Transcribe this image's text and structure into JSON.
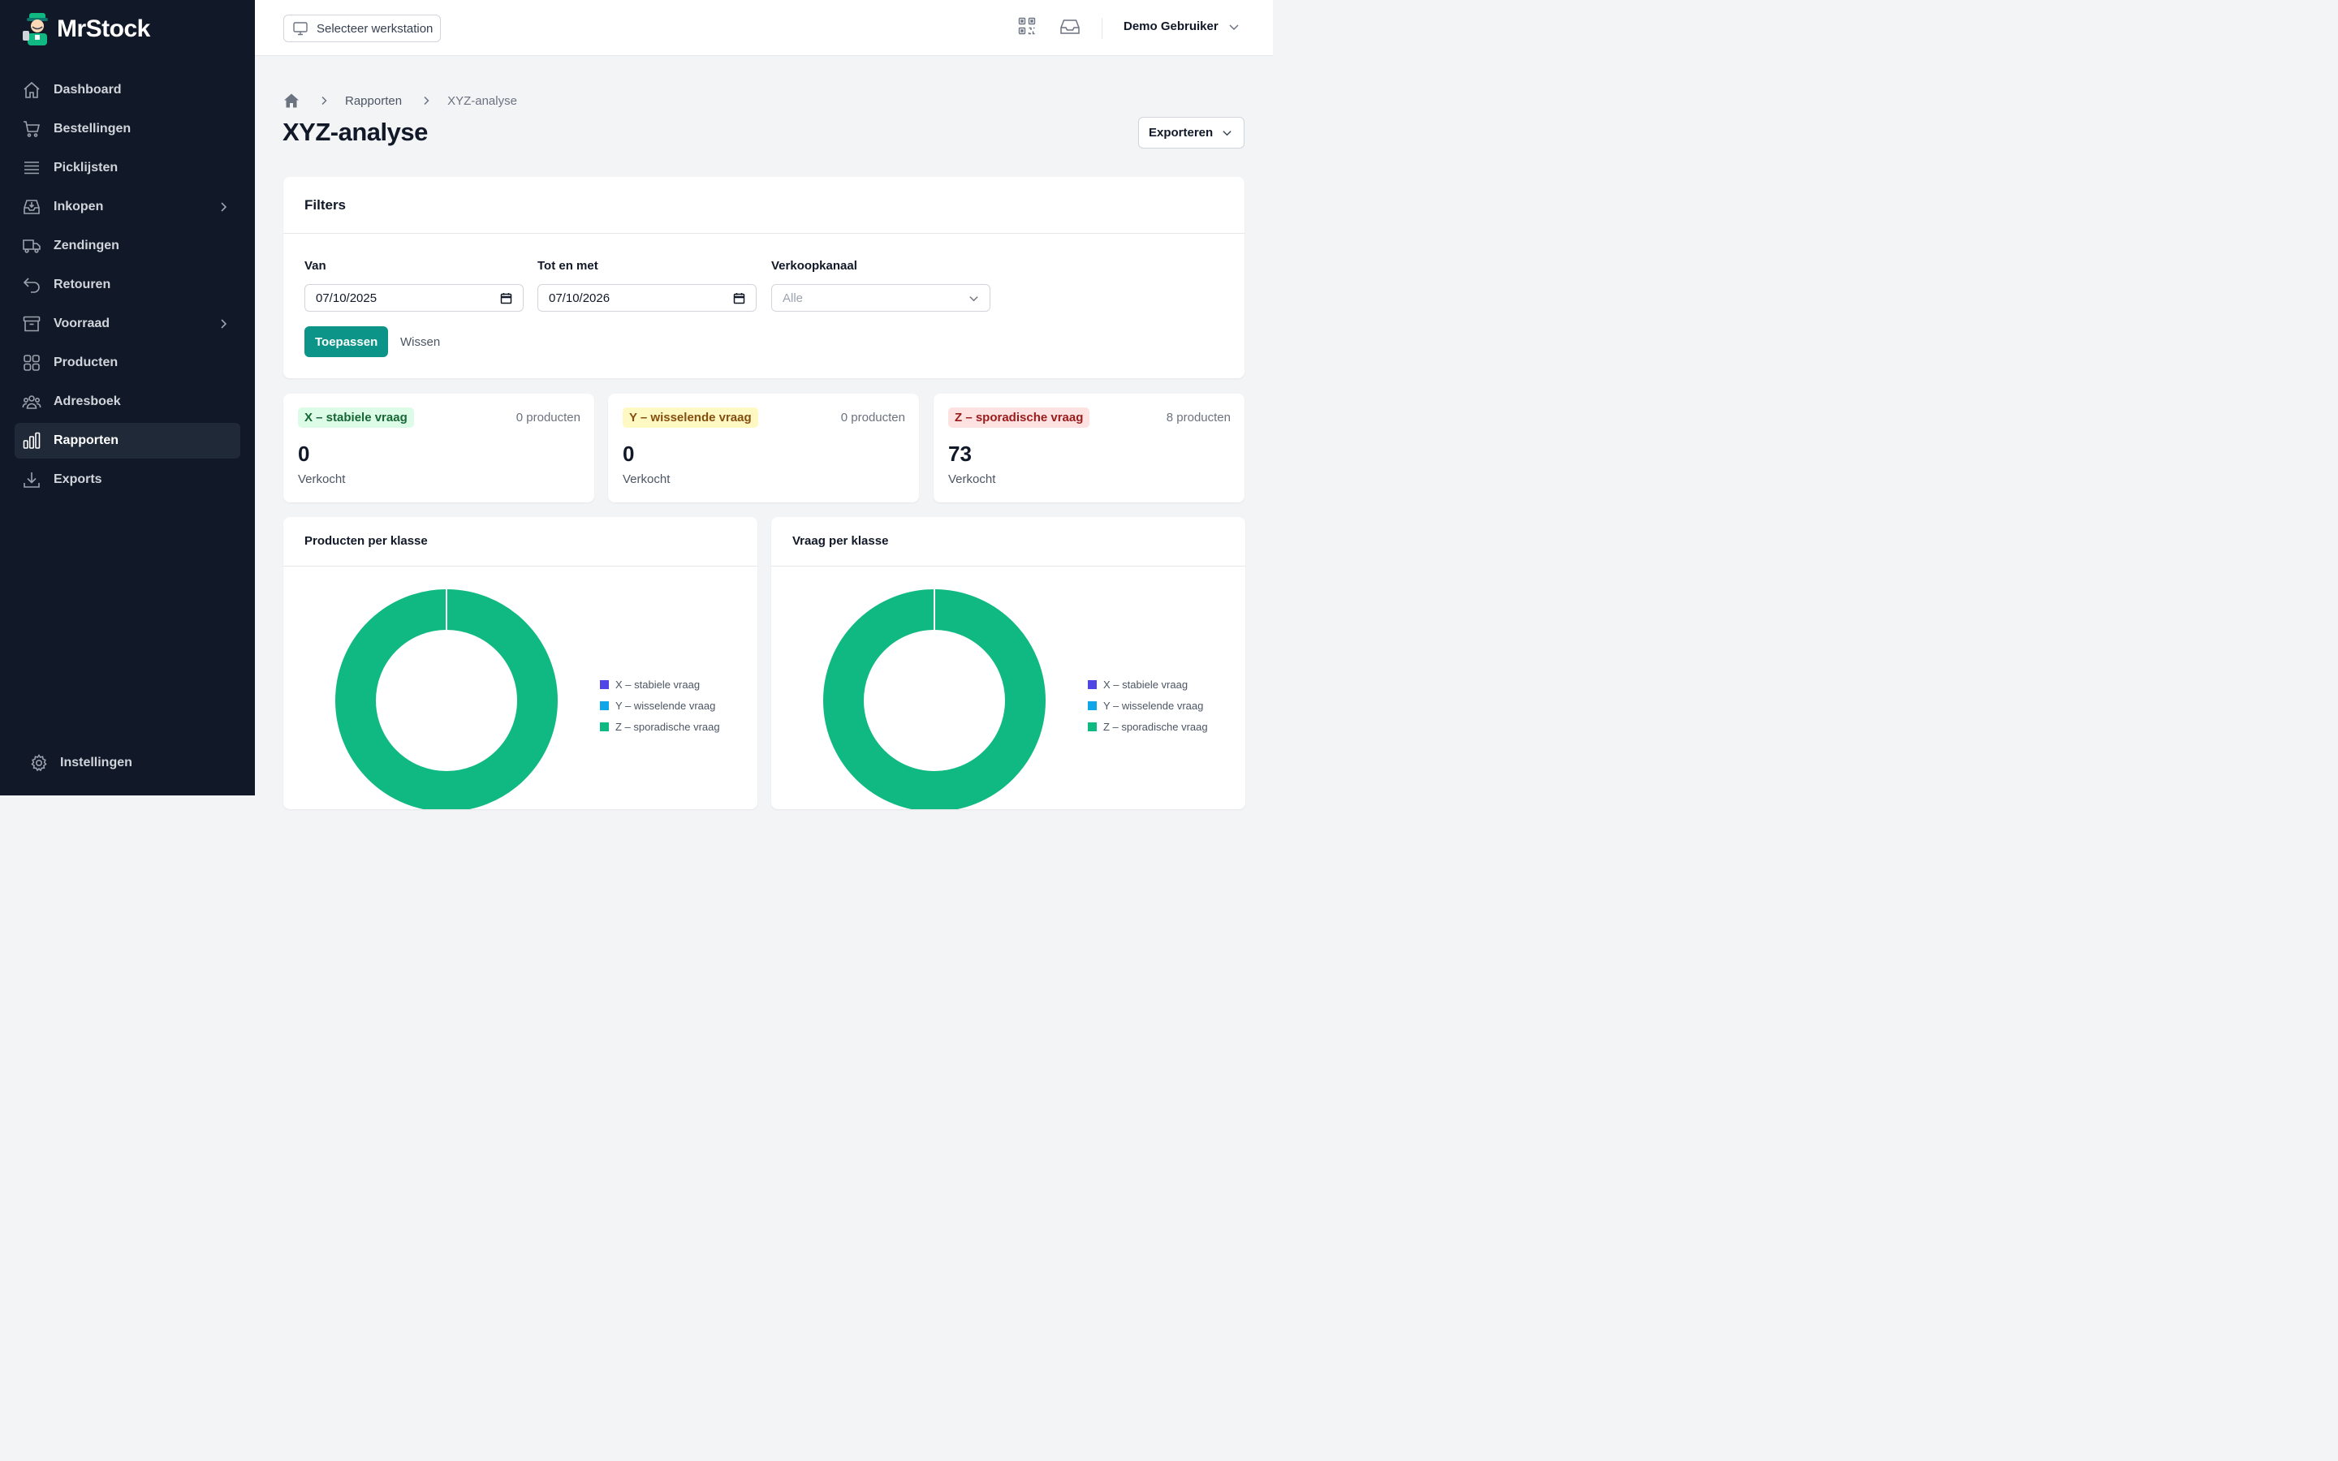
{
  "app": {
    "name": "MrStock"
  },
  "sidebar": {
    "items": [
      {
        "label": "Dashboard",
        "icon": "home-icon"
      },
      {
        "label": "Bestellingen",
        "icon": "cart-icon"
      },
      {
        "label": "Picklijsten",
        "icon": "list-icon"
      },
      {
        "label": "Inkopen",
        "icon": "inbox-icon"
      },
      {
        "label": "Zendingen",
        "icon": "truck-icon"
      },
      {
        "label": "Retouren",
        "icon": "return-icon"
      },
      {
        "label": "Voorraad",
        "icon": "archive-icon"
      },
      {
        "label": "Producten",
        "icon": "grid-icon"
      },
      {
        "label": "Adresboek",
        "icon": "users-icon"
      },
      {
        "label": "Rapporten",
        "icon": "bar-chart-icon"
      },
      {
        "label": "Exports",
        "icon": "download-icon"
      }
    ],
    "settings_label": "Instellingen"
  },
  "topbar": {
    "workstation_label": "Selecteer werkstation",
    "user_name": "Demo Gebruiker"
  },
  "breadcrumb": {
    "parent": "Rapporten",
    "current": "XYZ-analyse"
  },
  "page": {
    "title": "XYZ-analyse",
    "export_label": "Exporteren"
  },
  "filters": {
    "title": "Filters",
    "from_label": "Van",
    "from_value": "07/10/2025",
    "to_label": "Tot en met",
    "to_value": "07/10/2026",
    "channel_label": "Verkoopkanaal",
    "channel_value": "Alle",
    "apply_label": "Toepassen",
    "clear_label": "Wissen"
  },
  "stats": [
    {
      "badge": "X – stabiele vraag",
      "count": "0 producten",
      "value": "0",
      "sub": "Verkocht"
    },
    {
      "badge": "Y – wisselende vraag",
      "count": "0 producten",
      "value": "0",
      "sub": "Verkocht"
    },
    {
      "badge": "Z – sporadische vraag",
      "count": "8 producten",
      "value": "73",
      "sub": "Verkocht"
    }
  ],
  "colors": {
    "x": "#4f46e5",
    "y": "#0ea5e9",
    "z": "#10b981"
  },
  "chart_data": [
    {
      "type": "pie",
      "title": "Producten per klasse",
      "categories": [
        "X – stabiele vraag",
        "Y – wisselende vraag",
        "Z – sporadische vraag"
      ],
      "values": [
        0,
        0,
        8
      ],
      "legend": "right"
    },
    {
      "type": "pie",
      "title": "Vraag per klasse",
      "categories": [
        "X – stabiele vraag",
        "Y – wisselende vraag",
        "Z – sporadische vraag"
      ],
      "values": [
        0,
        0,
        73
      ],
      "legend": "right"
    }
  ]
}
